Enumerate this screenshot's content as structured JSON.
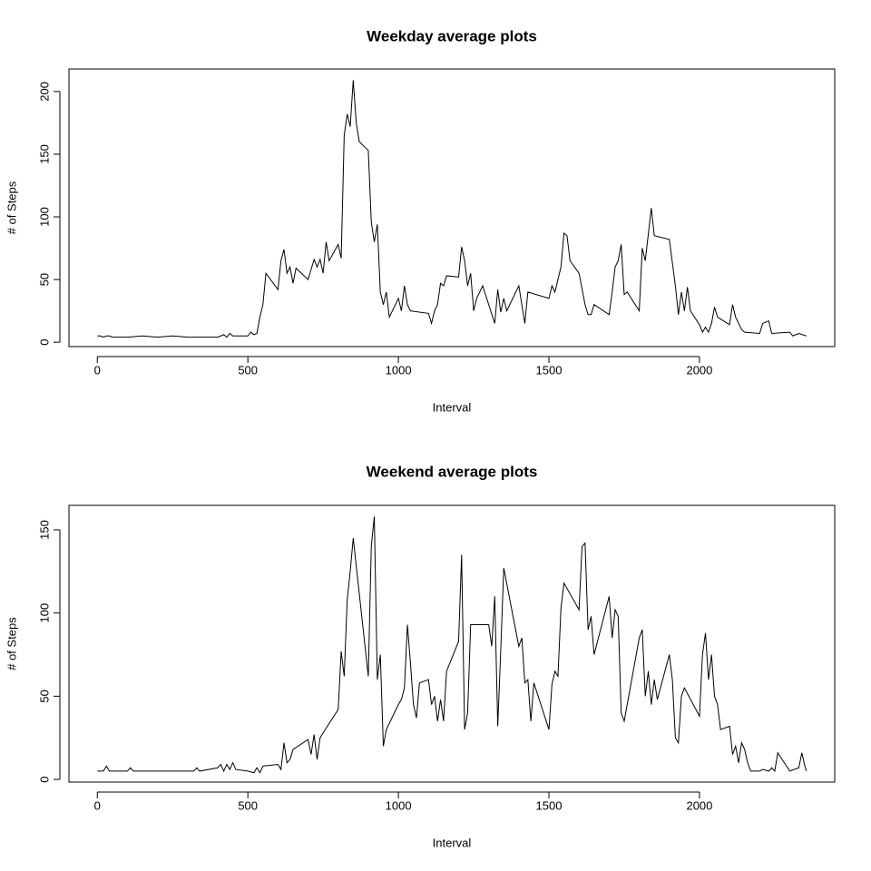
{
  "chart_data": [
    {
      "type": "line",
      "title": "Weekday average plots",
      "xlabel": "Interval",
      "ylabel": "# of Steps",
      "color": "#000000",
      "x": [
        0,
        10,
        20,
        30,
        40,
        50,
        100,
        150,
        200,
        250,
        300,
        350,
        400,
        420,
        430,
        440,
        450,
        500,
        510,
        520,
        530,
        540,
        550,
        560,
        600,
        610,
        620,
        630,
        640,
        650,
        660,
        700,
        720,
        730,
        740,
        750,
        760,
        770,
        800,
        810,
        820,
        830,
        840,
        850,
        860,
        870,
        900,
        910,
        920,
        930,
        940,
        950,
        960,
        970,
        1000,
        1010,
        1020,
        1030,
        1040,
        1100,
        1110,
        1120,
        1130,
        1140,
        1150,
        1160,
        1200,
        1210,
        1220,
        1230,
        1240,
        1250,
        1260,
        1280,
        1300,
        1320,
        1330,
        1340,
        1350,
        1360,
        1400,
        1420,
        1430,
        1500,
        1510,
        1520,
        1540,
        1550,
        1560,
        1570,
        1600,
        1620,
        1630,
        1640,
        1650,
        1700,
        1710,
        1720,
        1730,
        1740,
        1750,
        1760,
        1800,
        1810,
        1820,
        1840,
        1850,
        1900,
        1920,
        1930,
        1940,
        1950,
        1960,
        1970,
        2000,
        2010,
        2020,
        2030,
        2040,
        2050,
        2060,
        2100,
        2110,
        2120,
        2130,
        2140,
        2150,
        2200,
        2210,
        2230,
        2240,
        2300,
        2310,
        2330,
        2355
      ],
      "values": [
        5,
        5,
        4,
        5,
        5,
        4,
        4,
        5,
        4,
        5,
        4,
        4,
        4,
        6,
        4,
        7,
        5,
        5,
        8,
        6,
        7,
        20,
        30,
        55,
        42,
        65,
        74,
        55,
        60,
        47,
        59,
        50,
        66,
        60,
        66,
        55,
        80,
        65,
        78,
        67,
        165,
        182,
        172,
        209,
        175,
        160,
        153,
        96,
        80,
        94,
        40,
        30,
        40,
        20,
        35,
        25,
        45,
        30,
        25,
        23,
        15,
        25,
        30,
        47,
        45,
        53,
        52,
        76,
        65,
        45,
        55,
        25,
        35,
        45,
        30,
        15,
        42,
        24,
        35,
        25,
        45,
        15,
        40,
        35,
        45,
        40,
        60,
        87,
        85,
        65,
        55,
        30,
        22,
        22,
        30,
        22,
        40,
        60,
        65,
        78,
        38,
        40,
        25,
        75,
        65,
        107,
        85,
        82,
        45,
        22,
        40,
        25,
        44,
        25,
        14,
        8,
        12,
        8,
        15,
        28,
        20,
        14,
        30,
        20,
        15,
        10,
        8,
        7,
        15,
        17,
        7,
        8,
        5,
        7,
        5
      ],
      "xlim": [
        -94.2,
        2449.2
      ],
      "ylim": [
        -3.5,
        218
      ],
      "xticks": [
        0,
        500,
        1000,
        1500,
        2000
      ],
      "yticks": [
        0,
        50,
        100,
        150,
        200
      ]
    },
    {
      "type": "line",
      "title": "Weekend average plots",
      "xlabel": "Interval",
      "ylabel": "# of Steps",
      "color": "#000000",
      "x": [
        0,
        20,
        30,
        40,
        100,
        110,
        120,
        200,
        300,
        320,
        330,
        340,
        400,
        410,
        420,
        430,
        440,
        450,
        460,
        500,
        520,
        530,
        540,
        550,
        600,
        610,
        620,
        630,
        640,
        650,
        700,
        710,
        720,
        730,
        740,
        750,
        800,
        810,
        820,
        830,
        840,
        850,
        900,
        910,
        920,
        930,
        940,
        950,
        960,
        1000,
        1010,
        1020,
        1030,
        1040,
        1050,
        1060,
        1070,
        1100,
        1110,
        1120,
        1130,
        1140,
        1150,
        1160,
        1200,
        1210,
        1220,
        1230,
        1240,
        1250,
        1300,
        1310,
        1320,
        1330,
        1340,
        1350,
        1400,
        1410,
        1420,
        1430,
        1440,
        1450,
        1500,
        1510,
        1520,
        1530,
        1540,
        1550,
        1600,
        1610,
        1620,
        1630,
        1640,
        1650,
        1700,
        1710,
        1720,
        1730,
        1740,
        1750,
        1800,
        1810,
        1820,
        1830,
        1840,
        1850,
        1860,
        1900,
        1910,
        1920,
        1930,
        1940,
        1950,
        2000,
        2010,
        2020,
        2030,
        2040,
        2050,
        2060,
        2070,
        2100,
        2110,
        2120,
        2130,
        2140,
        2150,
        2160,
        2170,
        2200,
        2210,
        2230,
        2240,
        2250,
        2260,
        2300,
        2330,
        2340,
        2350,
        2355
      ],
      "values": [
        5,
        5,
        8,
        5,
        5,
        7,
        5,
        5,
        5,
        5,
        7,
        5,
        7,
        9,
        5,
        9,
        6,
        10,
        6,
        5,
        4,
        7,
        4,
        8,
        9,
        6,
        22,
        10,
        12,
        18,
        24,
        15,
        27,
        12,
        25,
        28,
        42,
        77,
        62,
        108,
        125,
        145,
        62,
        140,
        158,
        60,
        75,
        20,
        30,
        45,
        48,
        55,
        93,
        70,
        45,
        37,
        58,
        60,
        45,
        50,
        35,
        48,
        35,
        65,
        83,
        135,
        30,
        40,
        93,
        93,
        93,
        80,
        110,
        32,
        78,
        127,
        80,
        85,
        58,
        60,
        35,
        58,
        30,
        57,
        65,
        62,
        103,
        118,
        102,
        140,
        142,
        90,
        98,
        75,
        110,
        85,
        102,
        98,
        40,
        35,
        85,
        90,
        50,
        65,
        45,
        60,
        48,
        75,
        60,
        25,
        22,
        50,
        55,
        38,
        75,
        88,
        60,
        75,
        50,
        45,
        30,
        32,
        15,
        20,
        10,
        22,
        18,
        10,
        5,
        5,
        6,
        5,
        7,
        5,
        16,
        5,
        7,
        16,
        8,
        5
      ],
      "xlim": [
        -94.2,
        2449.2
      ],
      "ylim": [
        -1.6,
        164.7
      ],
      "xticks": [
        0,
        500,
        1000,
        1500,
        2000
      ],
      "yticks": [
        0,
        50,
        100,
        150
      ]
    }
  ]
}
